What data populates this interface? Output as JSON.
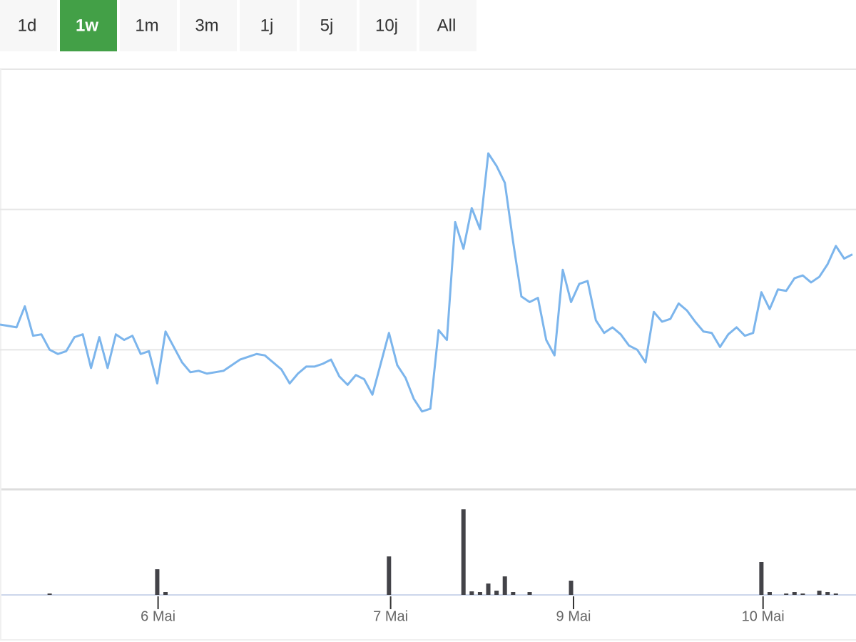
{
  "range_buttons": [
    {
      "label": "1d"
    },
    {
      "label": "1w",
      "active": true
    },
    {
      "label": "1m"
    },
    {
      "label": "3m"
    },
    {
      "label": "1j"
    },
    {
      "label": "5j"
    },
    {
      "label": "10j"
    },
    {
      "label": "All"
    }
  ],
  "chart_data": [
    {
      "type": "line",
      "color": "#7cb5ec",
      "xlim": [
        0,
        103
      ],
      "ylim": [
        0,
        3
      ],
      "yticks": [
        1,
        2
      ],
      "grid": true,
      "values": [
        1.18,
        1.17,
        1.16,
        1.31,
        1.1,
        1.11,
        1.0,
        0.97,
        0.99,
        1.09,
        1.11,
        0.87,
        1.09,
        0.87,
        1.11,
        1.07,
        1.1,
        0.97,
        0.99,
        0.76,
        1.13,
        1.02,
        0.91,
        0.84,
        0.85,
        0.83,
        0.84,
        0.85,
        0.89,
        0.93,
        0.95,
        0.97,
        0.96,
        0.91,
        0.86,
        0.76,
        0.83,
        0.88,
        0.88,
        0.9,
        0.93,
        0.81,
        0.75,
        0.82,
        0.79,
        0.68,
        0.9,
        1.12,
        0.89,
        0.8,
        0.65,
        0.56,
        0.58,
        1.14,
        1.07,
        1.91,
        1.72,
        2.01,
        1.86,
        2.4,
        2.31,
        2.19,
        1.77,
        1.38,
        1.34,
        1.37,
        1.07,
        0.96,
        1.57,
        1.34,
        1.47,
        1.49,
        1.21,
        1.12,
        1.16,
        1.11,
        1.03,
        1.0,
        0.91,
        1.27,
        1.2,
        1.22,
        1.33,
        1.28,
        1.2,
        1.13,
        1.12,
        1.02,
        1.11,
        1.16,
        1.1,
        1.12,
        1.41,
        1.29,
        1.43,
        1.42,
        1.51,
        1.53,
        1.48,
        1.52,
        1.61,
        1.74,
        1.65,
        1.68
      ]
    },
    {
      "type": "bar",
      "color": "#434348",
      "xlim": [
        0,
        103
      ],
      "ylim": [
        0,
        146
      ],
      "xticks": [
        {
          "value": 19.1,
          "label": "6 Mai"
        },
        {
          "value": 47.2,
          "label": "7 Mai"
        },
        {
          "value": 69.3,
          "label": "9 Mai"
        },
        {
          "value": 92.2,
          "label": "10 Mai"
        }
      ],
      "values": [
        0,
        0,
        0,
        0,
        0,
        0,
        2,
        0,
        0,
        0,
        0,
        0,
        0,
        0,
        0,
        0,
        0,
        0,
        0,
        36,
        4,
        0,
        0,
        0,
        0,
        0,
        0,
        0,
        0,
        0,
        0,
        0,
        0,
        0,
        0,
        0,
        0,
        0,
        0,
        0,
        0,
        0,
        0,
        0,
        0,
        0,
        0,
        54,
        0,
        0,
        0,
        0,
        0,
        0,
        0,
        0,
        120,
        5,
        4,
        16,
        6,
        26,
        4,
        0,
        4,
        0,
        0,
        0,
        0,
        20,
        0,
        0,
        0,
        0,
        0,
        0,
        0,
        0,
        0,
        0,
        0,
        0,
        0,
        0,
        0,
        0,
        0,
        0,
        0,
        0,
        0,
        0,
        46,
        4,
        0,
        2,
        4,
        2,
        0,
        6,
        4,
        2,
        0,
        0
      ]
    }
  ]
}
